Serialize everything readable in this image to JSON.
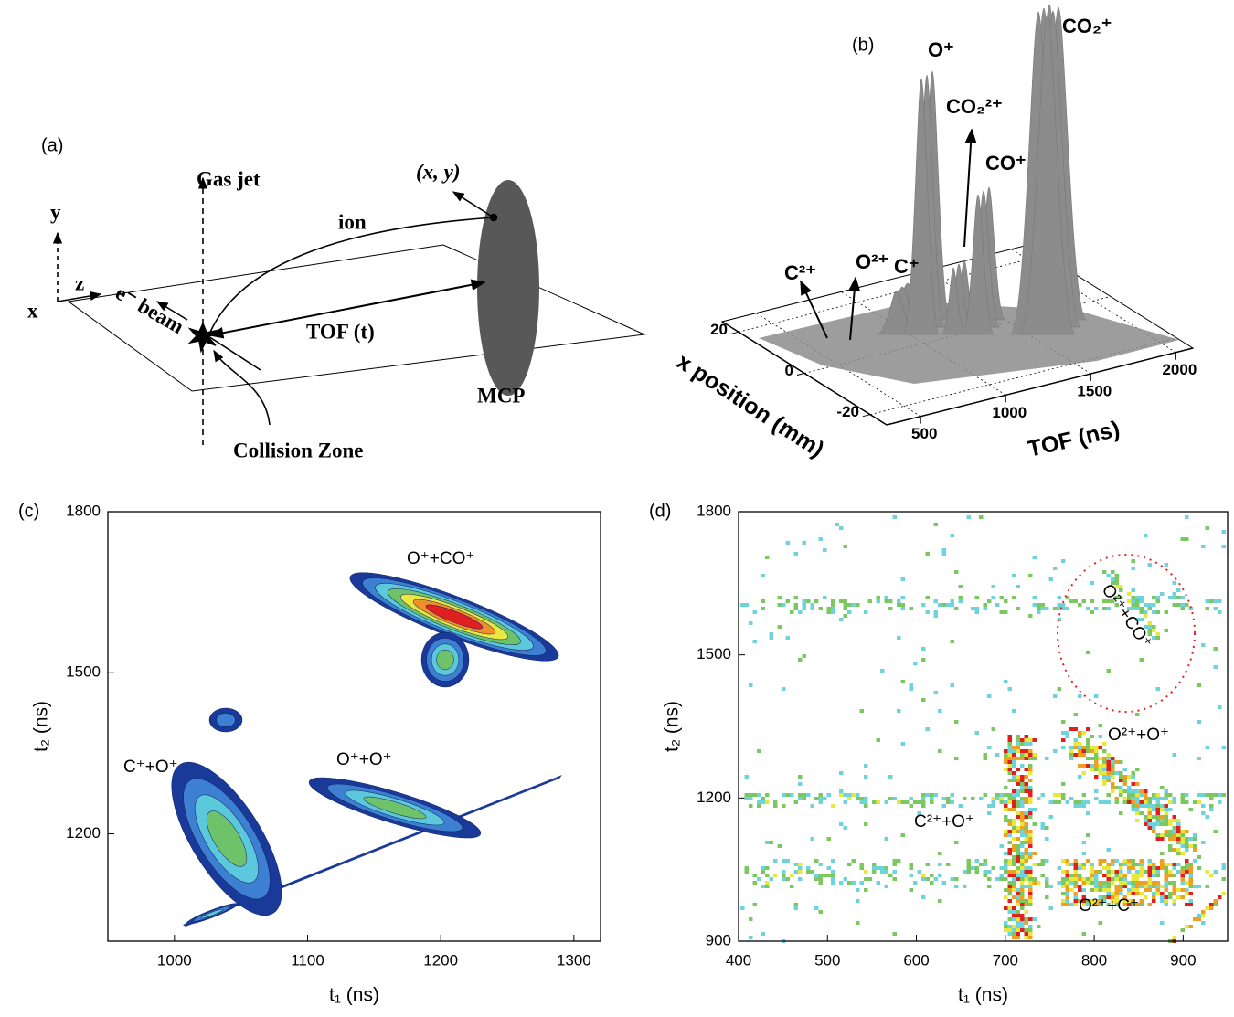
{
  "diagram": {
    "panel": "(a)",
    "gas_jet": "Gas jet",
    "detector_position": "(x, y)",
    "ion": "ion",
    "axis_y": "y",
    "axis_z": "z",
    "axis_x": "x",
    "beam": "e⁻ beam",
    "tof": "TOF (t)",
    "detector": "MCP",
    "collision_zone": "Collision Zone"
  },
  "chart_data": [
    {
      "type": "surface3d",
      "panel": "(b)",
      "xlabel": "x position (mm)",
      "ylabel": "TOF (ns)",
      "xlim": [
        -25,
        25
      ],
      "xticks": [
        -20,
        0,
        20
      ],
      "ylim": [
        300,
        2100
      ],
      "yticks": [
        500,
        1000,
        1500,
        2000
      ],
      "peak_labels": [
        "C²⁺",
        "O²⁺",
        "C⁺",
        "O⁺",
        "CO₂²⁺",
        "CO⁺",
        "CO₂⁺"
      ],
      "color": "#8c8c8c"
    },
    {
      "type": "contour",
      "panel": "(c)",
      "xlabel": "t₁ (ns)",
      "ylabel": "t₂ (ns)",
      "xlim": [
        950,
        1320
      ],
      "xticks": [
        1000,
        1100,
        1200,
        1300
      ],
      "ylim": [
        1000,
        1800
      ],
      "yticks": [
        1200,
        1500,
        1800
      ],
      "annotations": [
        "O⁺+CO⁺",
        "C⁺+O⁺",
        "O⁺+O⁺"
      ],
      "colors": [
        "#1a3a9a",
        "#3d7fd0",
        "#5cc8dc",
        "#6ec26a",
        "#e8e840",
        "#f09028",
        "#e02020"
      ]
    },
    {
      "type": "heatmap",
      "panel": "(d)",
      "xlabel": "t₁ (ns)",
      "ylabel": "t₂ (ns)",
      "xlim": [
        400,
        950
      ],
      "xticks": [
        400,
        500,
        600,
        700,
        800,
        900
      ],
      "ylim": [
        900,
        1800
      ],
      "yticks": [
        900,
        1200,
        1500,
        1800
      ],
      "annotations": [
        "O²⁺+CO⁺",
        "O²⁺+O⁺",
        "C²⁺+O⁺",
        "O²⁺+C⁺"
      ],
      "colors": [
        "#6fd3dc",
        "#7cc860",
        "#e8e83a",
        "#f0a020",
        "#e02020"
      ],
      "highlight_color": "#e02020"
    }
  ]
}
